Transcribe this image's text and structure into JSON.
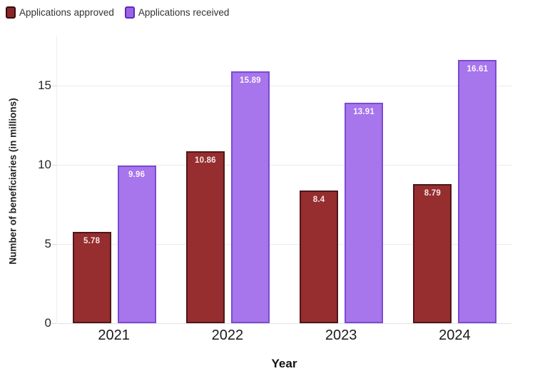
{
  "legend": {
    "items": [
      {
        "label": "Applications approved",
        "swatch_color": "#8c2527",
        "swatch_border": "#350d0f"
      },
      {
        "label": "Applications received",
        "swatch_color": "#9d63e6",
        "swatch_border": "#5a2db5"
      }
    ]
  },
  "chart_data": {
    "type": "bar",
    "title": "",
    "categories": [
      "2021",
      "2022",
      "2023",
      "2024"
    ],
    "series": [
      {
        "name": "Applications approved",
        "values": [
          5.78,
          10.86,
          8.4,
          8.79
        ],
        "fill": "#962d2f",
        "border": "#4f1719",
        "label_color": "#f3e7e7"
      },
      {
        "name": "Applications received",
        "values": [
          9.96,
          15.89,
          13.91,
          16.61
        ],
        "fill": "#a775ec",
        "border": "#7b4bd3",
        "label_color": "#faf5fd"
      }
    ],
    "xlabel": "Year",
    "ylabel": "Number of beneficiaries (in millions)",
    "yticks": [
      0,
      5,
      10,
      15
    ],
    "ylim": [
      0,
      17.9
    ],
    "grid": "horizontal",
    "legend_position": "top-left"
  }
}
